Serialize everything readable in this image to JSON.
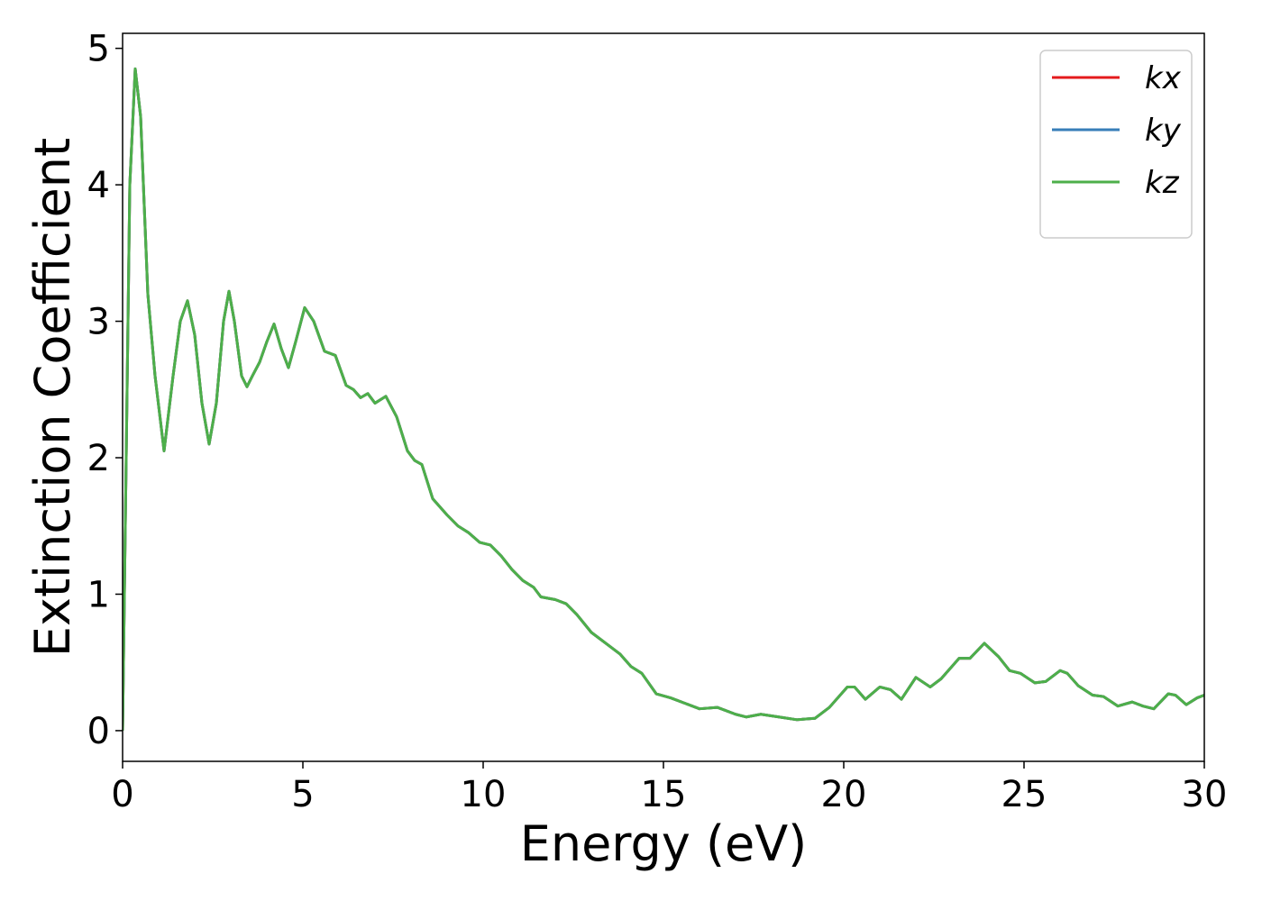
{
  "chart_data": {
    "type": "line",
    "xlabel": "Energy (eV)",
    "ylabel": "Extinction Coefficient",
    "x": [
      0,
      0.1,
      0.2,
      0.35,
      0.5,
      0.7,
      0.9,
      1.15,
      1.4,
      1.6,
      1.8,
      2.0,
      2.2,
      2.4,
      2.6,
      2.8,
      2.95,
      3.1,
      3.3,
      3.45,
      3.6,
      3.8,
      4.0,
      4.2,
      4.4,
      4.6,
      4.8,
      5.05,
      5.3,
      5.6,
      5.9,
      6.2,
      6.4,
      6.6,
      6.8,
      7.0,
      7.3,
      7.6,
      7.9,
      8.1,
      8.3,
      8.6,
      9.0,
      9.3,
      9.6,
      9.9,
      10.2,
      10.5,
      10.8,
      11.1,
      11.4,
      11.6,
      12.0,
      12.3,
      12.6,
      13.0,
      13.4,
      13.8,
      14.1,
      14.4,
      14.8,
      15.2,
      15.6,
      16.0,
      16.5,
      17.0,
      17.3,
      17.7,
      18.2,
      18.7,
      19.2,
      19.6,
      20.1,
      20.3,
      20.6,
      21.0,
      21.3,
      21.6,
      22.0,
      22.4,
      22.7,
      23.2,
      23.5,
      23.9,
      24.3,
      24.6,
      24.9,
      25.3,
      25.6,
      26.0,
      26.2,
      26.5,
      26.9,
      27.2,
      27.6,
      28.0,
      28.3,
      28.6,
      29.0,
      29.2,
      29.5,
      29.8,
      30.0
    ],
    "series": [
      {
        "name": "kx",
        "color": "#e41a1c",
        "values": [
          0,
          2.0,
          4.0,
          4.85,
          4.5,
          3.2,
          2.6,
          2.05,
          2.6,
          3.0,
          3.15,
          2.9,
          2.4,
          2.1,
          2.4,
          3.0,
          3.22,
          3.0,
          2.6,
          2.52,
          2.6,
          2.7,
          2.85,
          2.98,
          2.8,
          2.66,
          2.85,
          3.1,
          3.0,
          2.78,
          2.75,
          2.53,
          2.5,
          2.44,
          2.47,
          2.4,
          2.45,
          2.3,
          2.05,
          1.98,
          1.95,
          1.7,
          1.58,
          1.5,
          1.45,
          1.38,
          1.36,
          1.28,
          1.18,
          1.1,
          1.05,
          0.98,
          0.96,
          0.93,
          0.85,
          0.72,
          0.64,
          0.56,
          0.47,
          0.42,
          0.27,
          0.24,
          0.2,
          0.16,
          0.17,
          0.12,
          0.1,
          0.12,
          0.1,
          0.08,
          0.09,
          0.17,
          0.32,
          0.32,
          0.23,
          0.32,
          0.3,
          0.23,
          0.39,
          0.32,
          0.38,
          0.53,
          0.53,
          0.64,
          0.54,
          0.44,
          0.42,
          0.35,
          0.36,
          0.44,
          0.42,
          0.33,
          0.26,
          0.25,
          0.18,
          0.21,
          0.18,
          0.16,
          0.27,
          0.26,
          0.19,
          0.24,
          0.26
        ]
      },
      {
        "name": "ky",
        "color": "#377eb8",
        "values": [
          0,
          2.0,
          4.0,
          4.85,
          4.5,
          3.2,
          2.6,
          2.05,
          2.6,
          3.0,
          3.15,
          2.9,
          2.4,
          2.1,
          2.4,
          3.0,
          3.22,
          3.0,
          2.6,
          2.52,
          2.6,
          2.7,
          2.85,
          2.98,
          2.8,
          2.66,
          2.85,
          3.1,
          3.0,
          2.78,
          2.75,
          2.53,
          2.5,
          2.44,
          2.47,
          2.4,
          2.45,
          2.3,
          2.05,
          1.98,
          1.95,
          1.7,
          1.58,
          1.5,
          1.45,
          1.38,
          1.36,
          1.28,
          1.18,
          1.1,
          1.05,
          0.98,
          0.96,
          0.93,
          0.85,
          0.72,
          0.64,
          0.56,
          0.47,
          0.42,
          0.27,
          0.24,
          0.2,
          0.16,
          0.17,
          0.12,
          0.1,
          0.12,
          0.1,
          0.08,
          0.09,
          0.17,
          0.32,
          0.32,
          0.23,
          0.32,
          0.3,
          0.23,
          0.39,
          0.32,
          0.38,
          0.53,
          0.53,
          0.64,
          0.54,
          0.44,
          0.42,
          0.35,
          0.36,
          0.44,
          0.42,
          0.33,
          0.26,
          0.25,
          0.18,
          0.21,
          0.18,
          0.16,
          0.27,
          0.26,
          0.19,
          0.24,
          0.26
        ]
      },
      {
        "name": "kz",
        "color": "#4daf4a",
        "values": [
          0,
          2.0,
          4.0,
          4.85,
          4.5,
          3.2,
          2.6,
          2.05,
          2.6,
          3.0,
          3.15,
          2.9,
          2.4,
          2.1,
          2.4,
          3.0,
          3.22,
          3.0,
          2.6,
          2.52,
          2.6,
          2.7,
          2.85,
          2.98,
          2.8,
          2.66,
          2.85,
          3.1,
          3.0,
          2.78,
          2.75,
          2.53,
          2.5,
          2.44,
          2.47,
          2.4,
          2.45,
          2.3,
          2.05,
          1.98,
          1.95,
          1.7,
          1.58,
          1.5,
          1.45,
          1.38,
          1.36,
          1.28,
          1.18,
          1.1,
          1.05,
          0.98,
          0.96,
          0.93,
          0.85,
          0.72,
          0.64,
          0.56,
          0.47,
          0.42,
          0.27,
          0.24,
          0.2,
          0.16,
          0.17,
          0.12,
          0.1,
          0.12,
          0.1,
          0.08,
          0.09,
          0.17,
          0.32,
          0.32,
          0.23,
          0.32,
          0.3,
          0.23,
          0.39,
          0.32,
          0.38,
          0.53,
          0.53,
          0.64,
          0.54,
          0.44,
          0.42,
          0.35,
          0.36,
          0.44,
          0.42,
          0.33,
          0.26,
          0.25,
          0.18,
          0.21,
          0.18,
          0.16,
          0.27,
          0.26,
          0.19,
          0.24,
          0.26
        ]
      }
    ],
    "xlim": [
      0,
      30
    ],
    "xticks": [
      0,
      5,
      10,
      15,
      20,
      25,
      30
    ],
    "ylim": [
      -0.225,
      5.11
    ],
    "yticks": [
      0,
      1,
      2,
      3,
      4,
      5
    ],
    "legend": "upper right",
    "grid": false
  }
}
